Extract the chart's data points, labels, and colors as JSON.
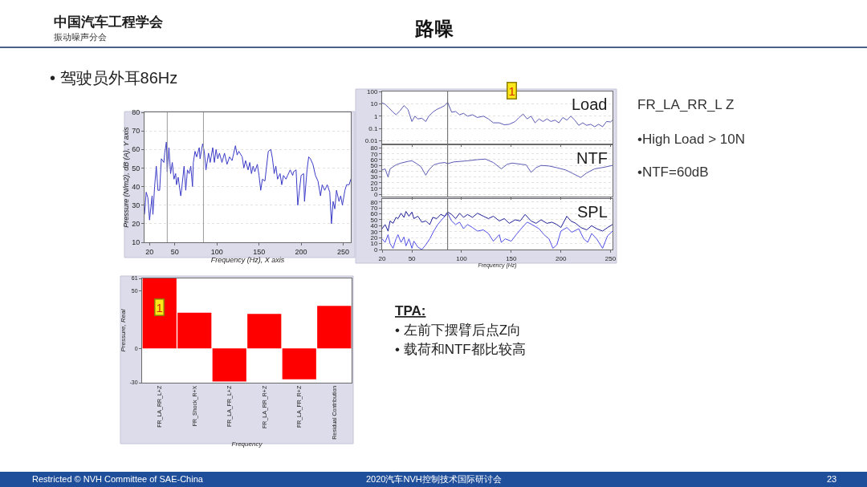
{
  "chart_data": [
    {
      "type": "other",
      "title": "路噪",
      "subtitle": "• 驾驶员外耳86Hz",
      "annotations": [
        "中国汽车工程学会",
        "振动噪声分会",
        "Restricted © NVH Committee of SAE-China",
        "2020汽车NVH控制技术国际研讨会",
        "23"
      ]
    },
    {
      "type": "line",
      "xlabel": "Frequency (Hz), X axis",
      "ylabel": "Pressure (N/m2), dB (A), Y axis",
      "color": "#3b3bc8",
      "x": [
        14,
        16,
        18,
        20,
        23,
        24,
        26,
        28,
        30,
        32,
        34,
        37,
        38,
        40,
        41,
        43,
        45,
        47,
        49,
        51,
        52,
        54,
        57,
        58,
        61,
        63,
        65,
        67,
        69,
        71,
        72,
        74,
        76,
        79,
        80,
        83,
        85,
        87,
        90,
        92,
        95,
        97,
        99,
        101,
        103,
        106,
        109,
        112,
        115,
        118,
        122,
        124,
        126,
        130,
        132,
        134,
        137,
        139,
        141,
        143,
        145,
        148,
        150,
        152,
        154,
        157,
        159,
        161,
        164,
        166,
        168,
        170,
        172,
        175,
        177,
        179,
        182,
        184,
        187,
        190,
        191,
        194,
        196,
        198,
        200,
        203,
        204,
        207,
        209,
        211,
        214,
        217,
        220,
        223,
        225,
        228,
        231,
        234,
        236,
        238,
        240,
        242,
        245,
        247,
        249,
        252,
        254,
        257,
        259
      ],
      "values": [
        25,
        37,
        34,
        22,
        35,
        25,
        40,
        51,
        38,
        38,
        55,
        53,
        58,
        64,
        48,
        61,
        47,
        53,
        44,
        47,
        41,
        45,
        35,
        38,
        51,
        38,
        49,
        47,
        51,
        40,
        53,
        59,
        56,
        61,
        55,
        63,
        59,
        49,
        58,
        53,
        61,
        53,
        60,
        55,
        58,
        53,
        58,
        52,
        56,
        54,
        62,
        57,
        59,
        56,
        50,
        54,
        49,
        53,
        47,
        51,
        48,
        52,
        46,
        38,
        44,
        43,
        51,
        59,
        60,
        55,
        47,
        51,
        44,
        47,
        41,
        46,
        44,
        46,
        49,
        46,
        48,
        49,
        30,
        38,
        46,
        47,
        32,
        49,
        56,
        55,
        52,
        46,
        43,
        35,
        41,
        38,
        41,
        37,
        20,
        32,
        28,
        38,
        32,
        35,
        30,
        38,
        41,
        41,
        44
      ],
      "xlim": [
        14,
        259
      ],
      "xticks": [
        20,
        50,
        100,
        150,
        200,
        250
      ],
      "ylim": [
        10,
        80
      ],
      "yticks": [
        10,
        20,
        30,
        40,
        50,
        60,
        70,
        80
      ],
      "grid": "y",
      "ref_lines": [
        {
          "axis": "x",
          "value": 41,
          "color": "#9a9a9a"
        },
        {
          "axis": "x",
          "value": 84,
          "color": "#9a9a9a"
        }
      ]
    },
    {
      "type": "line",
      "title": "Load",
      "color": "#5a5ab4",
      "log": "y",
      "x": [
        20,
        23,
        27,
        31,
        34,
        38,
        42,
        46,
        50,
        53,
        56,
        60,
        64,
        67,
        71,
        75,
        79,
        83,
        86,
        90,
        94,
        98,
        102,
        106,
        111,
        116,
        122,
        127,
        132,
        138,
        143,
        148,
        154,
        158,
        162,
        166,
        170,
        174,
        178,
        182,
        186,
        190,
        194,
        198,
        202,
        206,
        210,
        214,
        218,
        222,
        226,
        230,
        234,
        238,
        242,
        246,
        250,
        252
      ],
      "values": [
        12,
        9.3,
        4.5,
        2.1,
        1.3,
        2.7,
        7.2,
        3.5,
        0.37,
        1,
        0.6,
        0.68,
        0.37,
        1,
        2.1,
        3.5,
        4.9,
        7.2,
        13,
        2.1,
        2.4,
        1.3,
        1.7,
        1,
        1.3,
        0.78,
        1,
        0.6,
        0.29,
        0.29,
        0.2,
        0.22,
        0.37,
        0.78,
        1.5,
        0.6,
        1,
        0.29,
        0.6,
        0.37,
        0.6,
        0.37,
        0.48,
        0.29,
        0.78,
        0.48,
        1,
        0.48,
        0.18,
        0.29,
        0.18,
        0.22,
        0.14,
        0.22,
        0.14,
        0.37,
        0.34,
        0.48
      ],
      "xlim": [
        20,
        252
      ],
      "ylim": [
        0.006,
        100
      ],
      "yticks": [
        0.01,
        0.1,
        1,
        10,
        100
      ],
      "tick_labels": "y",
      "grid": "y",
      "ref_lines": [
        {
          "axis": "x",
          "value": 86,
          "color": "#606060"
        }
      ],
      "annotations": [
        "1"
      ]
    },
    {
      "type": "line",
      "title": "NTF",
      "color": "#5a5ab4",
      "x": [
        20,
        23,
        26,
        28,
        34,
        39,
        46,
        50,
        54,
        59,
        64,
        67,
        72,
        78,
        83,
        86,
        92,
        106,
        116,
        124,
        132,
        140,
        146,
        151,
        160,
        165,
        170,
        175,
        180,
        188,
        196,
        205,
        212,
        220,
        226,
        234,
        244,
        252
      ],
      "values": [
        42,
        44,
        30,
        44,
        51,
        54,
        57,
        58,
        54,
        48,
        33,
        42,
        51,
        54,
        55,
        53,
        56,
        58,
        60,
        61,
        55,
        44,
        52,
        54,
        52,
        51,
        38,
        46,
        50,
        49,
        46,
        42,
        36,
        29,
        37,
        44,
        47,
        50
      ],
      "xlim": [
        20,
        252
      ],
      "ylim": [
        -4,
        85
      ],
      "yticks": [
        0,
        10,
        20,
        30,
        40,
        50,
        60,
        70,
        80
      ],
      "tick_labels": "y",
      "grid": "y",
      "ref_lines": [
        {
          "axis": "x",
          "value": 86,
          "color": "#606060"
        }
      ]
    },
    {
      "type": "line",
      "title": "SPL",
      "xlabel": "Frequency (Hz)",
      "series": [
        {
          "color": "#1e1e96",
          "x": [
            20,
            23,
            26,
            28,
            31,
            34,
            36,
            39,
            42,
            44,
            47,
            50,
            52,
            56,
            60,
            64,
            68,
            71,
            75,
            79,
            83,
            86,
            90,
            94,
            98,
            102,
            106,
            111,
            116,
            122,
            127,
            132,
            138,
            143,
            148,
            154,
            159,
            164,
            170,
            175,
            180,
            186,
            191,
            196,
            200,
            206,
            210,
            215,
            220,
            226,
            231,
            236,
            242,
            247,
            252
          ],
          "values": [
            35,
            42,
            31,
            48,
            44,
            54,
            52,
            61,
            54,
            64,
            56,
            63,
            52,
            56,
            46,
            48,
            42,
            54,
            52,
            59,
            56,
            63,
            59,
            52,
            61,
            54,
            59,
            54,
            61,
            56,
            52,
            56,
            48,
            52,
            44,
            50,
            48,
            59,
            48,
            44,
            50,
            44,
            46,
            42,
            37,
            56,
            48,
            44,
            37,
            33,
            40,
            35,
            31,
            37,
            42
          ]
        },
        {
          "color": "#5050e6",
          "x": [
            20,
            23,
            26,
            28,
            31,
            34,
            36,
            39,
            42,
            44,
            47,
            50,
            52,
            56,
            60,
            64,
            68,
            72,
            76,
            80,
            86,
            90,
            94,
            98,
            102,
            106,
            111,
            116,
            122,
            127,
            132,
            138,
            140,
            144,
            150,
            155,
            160,
            166,
            171,
            178,
            183,
            188,
            192,
            196,
            200,
            206,
            211,
            218,
            223,
            227,
            231,
            236,
            242,
            247,
            252
          ],
          "values": [
            18,
            12,
            25,
            10,
            2,
            18,
            25,
            12,
            21,
            6,
            18,
            2,
            14,
            4,
            0,
            8,
            18,
            31,
            42,
            50,
            61,
            48,
            42,
            46,
            35,
            42,
            37,
            31,
            33,
            27,
            14,
            25,
            12,
            18,
            14,
            25,
            35,
            46,
            42,
            35,
            25,
            18,
            2,
            8,
            31,
            37,
            29,
            35,
            18,
            12,
            27,
            18,
            2,
            23,
            31
          ]
        }
      ],
      "xlim": [
        20,
        252
      ],
      "xticks": [
        20,
        50,
        100,
        150,
        200,
        250
      ],
      "ylim": [
        0,
        85
      ],
      "yticks": [
        0,
        10,
        20,
        30,
        40,
        50,
        60,
        70,
        80
      ],
      "grid": "y",
      "ref_lines": [
        {
          "axis": "x",
          "value": 86,
          "color": "#606060"
        }
      ]
    },
    {
      "type": "other",
      "title": "FR_LA_RR_L Z",
      "annotations": [
        "•High Load > 10N",
        "•NTF=60dB"
      ]
    },
    {
      "type": "bar",
      "xlabel": "Frequency",
      "ylabel": "Pressure, Real",
      "categories": [
        "FR_LA_RR_L+Z",
        "FR_Shock_R+X",
        "FR_LA_FR_L+Z",
        "FR_LA_RR_R+Z",
        "FR_LA_FR_R+Z",
        "Residual Contribution"
      ],
      "values": [
        61,
        31,
        -29,
        30,
        -27,
        37
      ],
      "color": "#ff0000",
      "ylim": [
        -30,
        61
      ],
      "yticks": [
        -30,
        0,
        50,
        61
      ],
      "annotations": [
        {
          "text": "1",
          "x": "FR_LA_RR_L+Z",
          "y": 36
        }
      ]
    },
    {
      "type": "other",
      "title": "TPA:",
      "annotations": [
        "• 左前下摆臂后点Z向",
        "• 载荷和NTF都比较高"
      ]
    }
  ]
}
